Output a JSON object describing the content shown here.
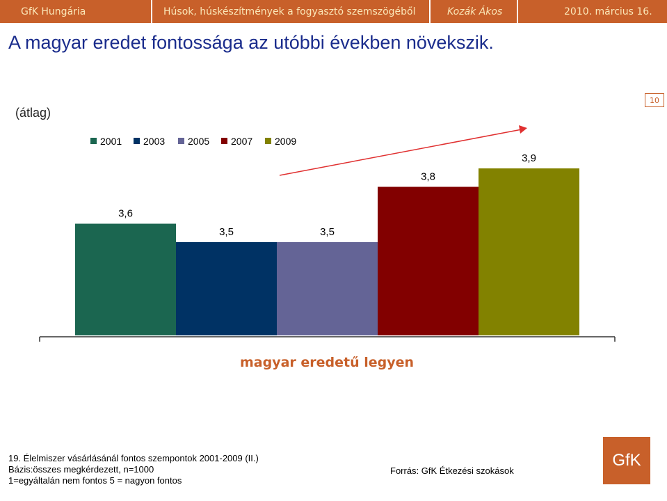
{
  "header": {
    "company": "GfK Hungária",
    "topic": "Húsok, húskészítmények a fogyasztó szemszögéből",
    "author": "Kozák Ákos",
    "date": "2010. március 16."
  },
  "page_title": "A magyar eredet fontossága az utóbbi években növekszik.",
  "page_number": "10",
  "unit_label": "(átlag)",
  "chart_data": {
    "type": "bar",
    "categories": [
      "magyar eredetű legyen"
    ],
    "series": [
      {
        "name": "2001",
        "values": [
          3.6
        ],
        "label": "3,6",
        "color": "#1b6650"
      },
      {
        "name": "2003",
        "values": [
          3.5
        ],
        "label": "3,5",
        "color": "#003264"
      },
      {
        "name": "2005",
        "values": [
          3.5
        ],
        "label": "3,5",
        "color": "#646496"
      },
      {
        "name": "2007",
        "values": [
          3.8
        ],
        "label": "3,8",
        "color": "#820000"
      },
      {
        "name": "2009",
        "values": [
          3.9
        ],
        "label": "3,9",
        "color": "#828200"
      }
    ],
    "category_color": "#c8602a",
    "trend_arrow": true
  },
  "footer": {
    "note_line1": "19. Élelmiszer vásárlásánál fontos szempontok 2001-2009 (II.)",
    "note_line2": "Bázis:összes megkérdezett, n=1000",
    "note_line3": "1=egyáltalán nem  fontos  5 = nagyon fontos",
    "source": "Forrás: GfK Étkezési szokások",
    "logo_text": "GfK"
  }
}
